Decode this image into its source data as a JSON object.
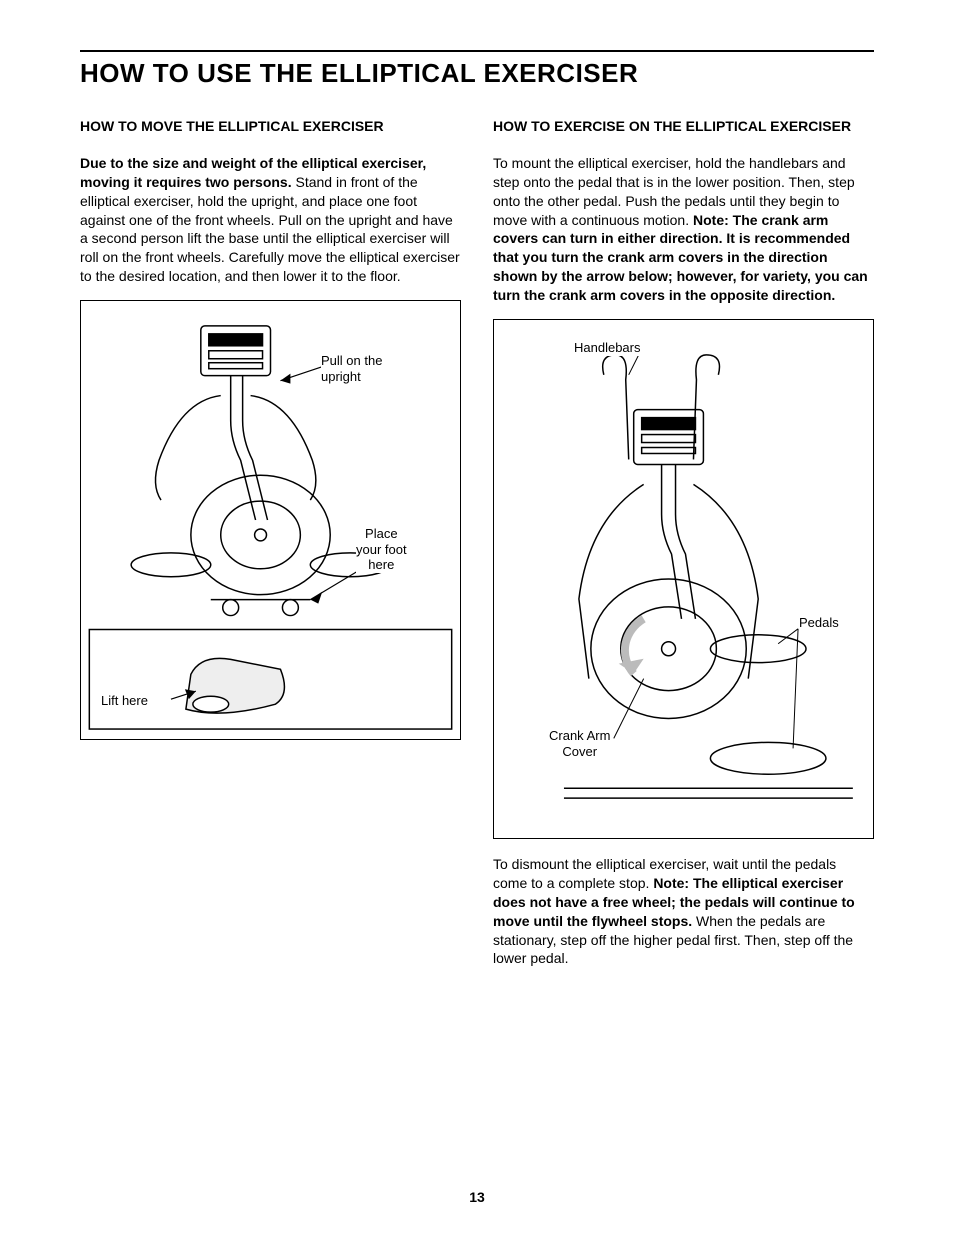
{
  "page": {
    "title": "HOW TO USE THE ELLIPTICAL EXERCISER",
    "number": "13"
  },
  "left": {
    "heading": "HOW TO MOVE THE ELLIPTICAL EXERCISER",
    "p1_bold": "Due to the size and weight of the elliptical exerciser, moving it requires two persons.",
    "p1_rest": " Stand in front of the elliptical exerciser, hold the upright, and place one foot against one of the front wheels. Pull on the upright and have a second person lift the base until the elliptical exerciser will roll on the front wheels. Carefully move the elliptical exerciser to the desired location, and then lower it to the floor.",
    "figure": {
      "callouts": {
        "pull_upright": "Pull on the\nupright",
        "place_foot": "Place\nyour foot\nhere",
        "lift_here": "Lift here"
      },
      "border_color": "#000000",
      "background": "#ffffff"
    }
  },
  "right": {
    "heading": "HOW TO EXERCISE ON THE ELLIPTICAL EXERCISER",
    "p1_start": "To mount the elliptical exerciser, hold the handlebars and step onto the pedal that is in the lower position. Then, step onto the other pedal. Push the pedals until they begin to move with a continuous motion. ",
    "p1_bold": "Note: The crank arm covers can turn in either direction. It is recommended that you turn the crank arm covers in the direction shown by the arrow below; however, for variety, you can turn the crank arm covers in the opposite direction.",
    "figure": {
      "callouts": {
        "handlebars": "Handlebars",
        "pedals": "Pedals",
        "crank_arm": "Crank Arm\nCover"
      },
      "border_color": "#000000",
      "background": "#ffffff"
    },
    "p2_start": "To dismount the elliptical exerciser, wait until the pedals come to a complete stop. ",
    "p2_bold": "Note: The elliptical exerciser does not have a free wheel; the pedals will continue to move until the flywheel stops.",
    "p2_end": " When the pedals are stationary, step off the higher pedal first. Then, step off the lower pedal."
  },
  "style": {
    "text_color": "#000000",
    "background_color": "#ffffff",
    "body_fontsize": 14,
    "heading_fontsize": 26,
    "line_stroke": "#000000"
  }
}
